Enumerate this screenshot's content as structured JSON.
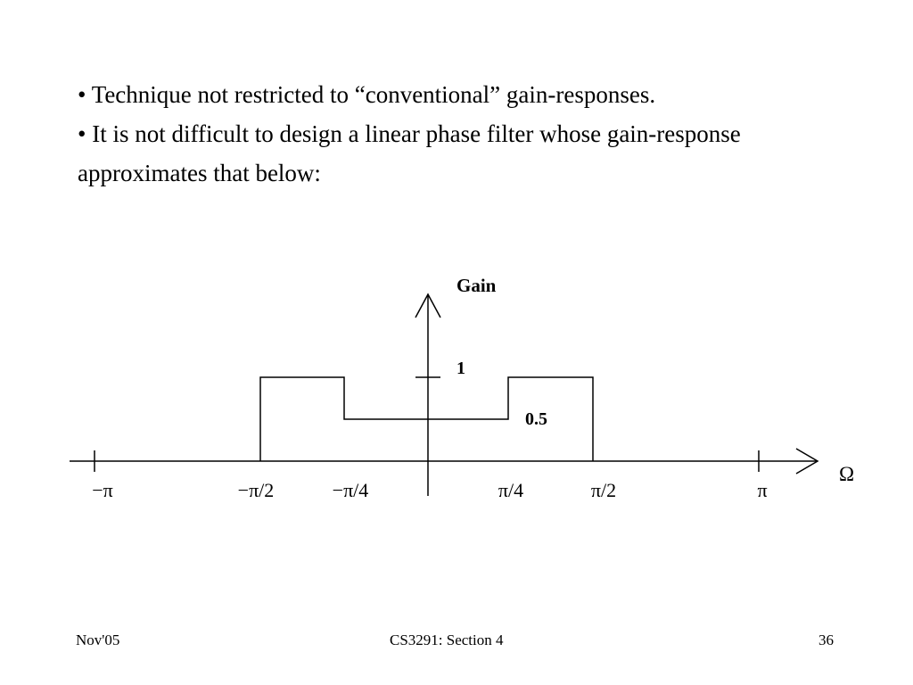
{
  "slide": {
    "bullets": [
      "• Technique not restricted to  “conventional” gain-responses.",
      "• It is not difficult to design a linear phase filter whose gain-response approximates that below:"
    ]
  },
  "diagram": {
    "y_axis_label": "Gain",
    "x_axis_label": "Ω",
    "level_labels": {
      "high": "1",
      "mid": "0.5"
    },
    "x_ticks": [
      "−π",
      "−π/2",
      "−π/4",
      "π/4",
      "π/2",
      "π"
    ],
    "gain_response": {
      "breakpoints": [
        "−π",
        "−π/2",
        "−π/4",
        "π/4",
        "π/2",
        "π"
      ],
      "gain": [
        0,
        1,
        0.5,
        1,
        0,
        0
      ]
    }
  },
  "footer": {
    "left": "Nov'05",
    "center": "CS3291: Section 4",
    "right": "36"
  }
}
